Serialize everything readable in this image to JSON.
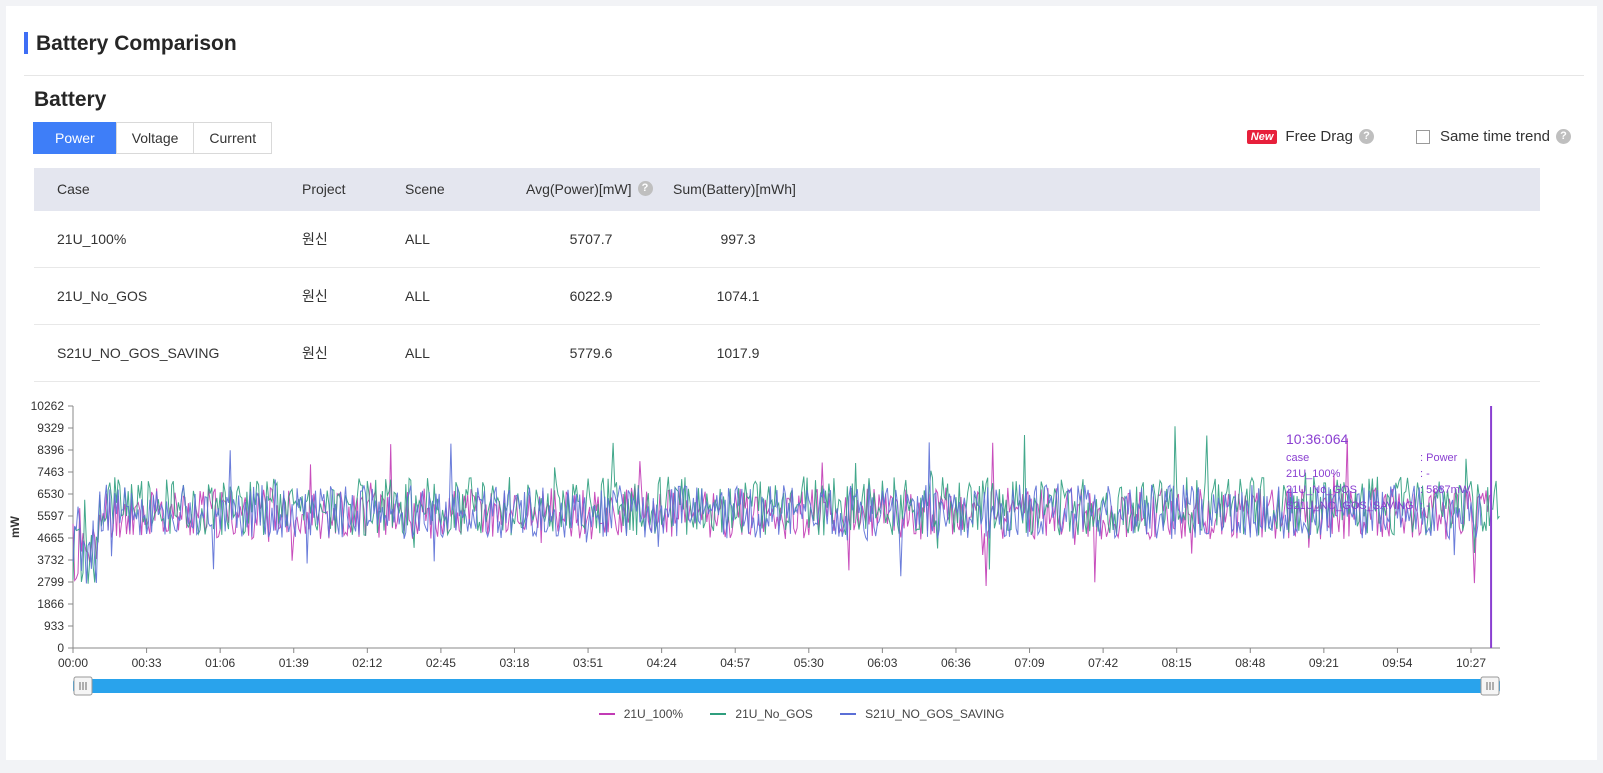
{
  "header": {
    "title": "Battery Comparison"
  },
  "section": {
    "title": "Battery"
  },
  "tabs": [
    {
      "label": "Power",
      "active": true
    },
    {
      "label": "Voltage",
      "active": false
    },
    {
      "label": "Current",
      "active": false
    }
  ],
  "options": {
    "new_badge": "New",
    "free_drag_label": "Free Drag",
    "same_time_trend_label": "Same time trend",
    "same_time_trend_checked": false,
    "help_icon": "question-circle-icon"
  },
  "table": {
    "headers": {
      "case": "Case",
      "project": "Project",
      "scene": "Scene",
      "avg": "Avg(Power)[mW]",
      "sum": "Sum(Battery)[mWh]"
    },
    "rows": [
      {
        "case": "21U_100%",
        "project": "원신",
        "scene": "ALL",
        "avg": "5707.7",
        "sum": "997.3"
      },
      {
        "case": "21U_No_GOS",
        "project": "원신",
        "scene": "ALL",
        "avg": "6022.9",
        "sum": "1074.1"
      },
      {
        "case": "S21U_NO_GOS_SAVING",
        "project": "원신",
        "scene": "ALL",
        "avg": "5779.6",
        "sum": "1017.9"
      }
    ]
  },
  "colors": {
    "accent": "#3e7ef8",
    "series_1": "#c23bb5",
    "series_2": "#2f9e7e",
    "series_3": "#5b6fd6",
    "cursor": "#8a3fd1",
    "slider": "#29a3ec"
  },
  "chart_data": {
    "type": "line",
    "ylabel": "mW",
    "y_ticks": [
      "10262",
      "9329",
      "8396",
      "7463",
      "6530",
      "5597",
      "4665",
      "3732",
      "2799",
      "1866",
      "933",
      "0"
    ],
    "ylim": [
      0,
      10262
    ],
    "x_ticks": [
      "00:00",
      "00:33",
      "01:06",
      "01:39",
      "02:12",
      "02:45",
      "03:18",
      "03:51",
      "04:24",
      "04:57",
      "05:30",
      "06:03",
      "06:36",
      "07:09",
      "07:42",
      "08:15",
      "08:48",
      "09:21",
      "09:54",
      "10:27"
    ],
    "xlim_seconds": [
      0,
      640
    ],
    "legend_position": "bottom-center",
    "series": [
      {
        "name": "21U_100%",
        "mean": 5707.7,
        "spread": 1100,
        "end_seconds": 636,
        "seed": 11
      },
      {
        "name": "21U_No_GOS",
        "mean": 6022.9,
        "spread": 1250,
        "end_seconds": 640,
        "seed": 23
      },
      {
        "name": "S21U_NO_GOS_SAVING",
        "mean": 5779.6,
        "spread": 1150,
        "end_seconds": 632,
        "seed": 37
      }
    ],
    "tooltip": {
      "time": "10:36:064",
      "rows": [
        {
          "label": "case",
          "value": ": Power"
        },
        {
          "label": "21U_100%",
          "value": ": -"
        },
        {
          "label": "21U_No_GOS",
          "value": ": 5887mW"
        },
        {
          "label": "S21U_NO_GOS_SAVING",
          "value": ": -"
        }
      ]
    },
    "cursor_seconds": 636
  }
}
